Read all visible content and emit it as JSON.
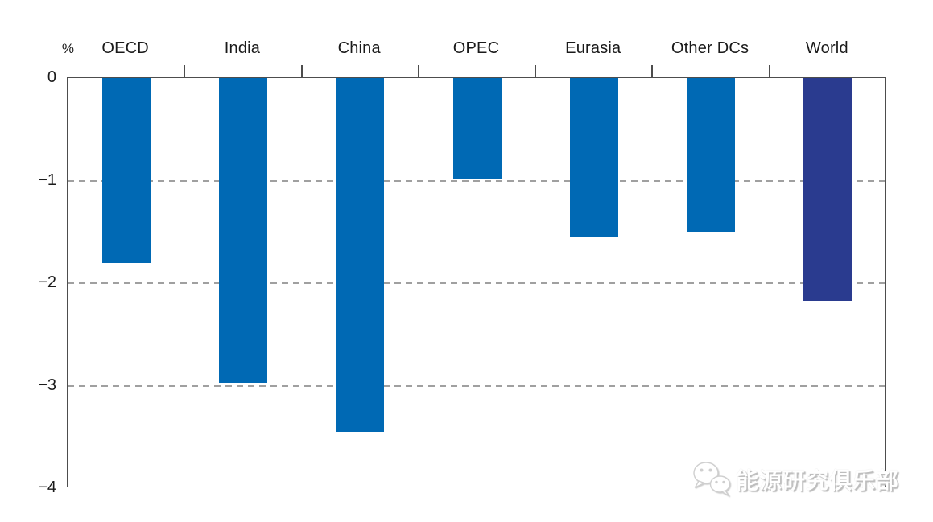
{
  "chart_data": {
    "type": "bar",
    "unit_label": "%",
    "categories": [
      "OECD",
      "India",
      "China",
      "OPEC",
      "Eurasia",
      "Other DCs",
      "World"
    ],
    "values": [
      -1.8,
      -2.97,
      -3.45,
      -0.98,
      -1.55,
      -1.5,
      -2.17
    ],
    "bar_colors": [
      "#0069b4",
      "#0069b4",
      "#0069b4",
      "#0069b4",
      "#0069b4",
      "#0069b4",
      "#2a3b8f"
    ],
    "ylim": [
      -4,
      0
    ],
    "yticks": [
      0,
      -1,
      -2,
      -3,
      -4
    ],
    "ytick_labels": [
      "0",
      "−1",
      "−2",
      "−3",
      "−4"
    ],
    "gridlines": [
      -1,
      -2,
      -3
    ],
    "grid_style": "dashed",
    "legend_position": "none",
    "category_labels_position": "top"
  },
  "watermark": {
    "text": "能源研究俱乐部",
    "icon": "wechat-icon",
    "text_color": "#ffffff"
  },
  "colors": {
    "bar_default": "#0069b4",
    "bar_world": "#2a3b8f",
    "frame": "#4d4d4d",
    "gridline": "#a0a0a0",
    "text": "#1a1a1a",
    "background": "#ffffff"
  }
}
